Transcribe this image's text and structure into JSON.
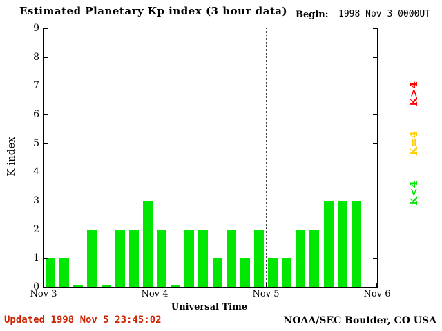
{
  "chart_data": {
    "type": "bar",
    "title": "Estimated Planetary Kp index (3 hour data)",
    "begin_label": "Begin:",
    "begin_value": "1998 Nov 3 0000UT",
    "xlabel": "Universal Time",
    "ylabel": "K index",
    "ylim": [
      0,
      9
    ],
    "y_ticks": [
      0,
      1,
      2,
      3,
      4,
      5,
      6,
      7,
      8,
      9
    ],
    "x_ticks": [
      "Nov 3",
      "Nov 4",
      "Nov 5",
      "Nov 6"
    ],
    "slots_per_day": 8,
    "total_slots": 24,
    "interval_hours": 3,
    "values": [
      1,
      1,
      0,
      2,
      0,
      2,
      2,
      3,
      2,
      0,
      2,
      2,
      1,
      2,
      1,
      2,
      1,
      1,
      2,
      2,
      3,
      3,
      3,
      null
    ],
    "bar_color": "#00e600",
    "grid": "dotted vertical lines at day boundaries",
    "legend_position": "right",
    "legend": [
      {
        "label": "K>4",
        "color": "#ff0000"
      },
      {
        "label": "K=4",
        "color": "#ffcc00"
      },
      {
        "label": "K<4",
        "color": "#00e600"
      }
    ]
  },
  "footer": {
    "updated": "Updated 1998 Nov 5 23:45:02",
    "updated_color": "#cc2200",
    "credit": "NOAA/SEC Boulder, CO USA"
  }
}
